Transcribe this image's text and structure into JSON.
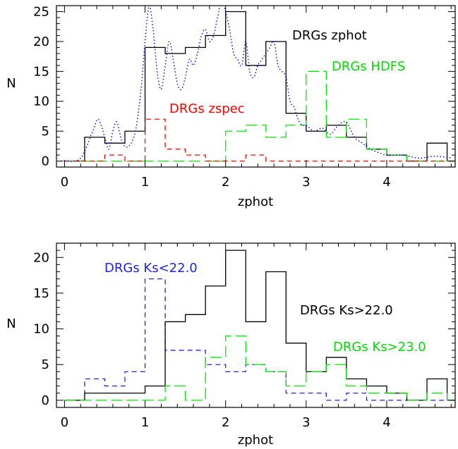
{
  "chart_data": [
    {
      "type": "histogram",
      "xlabel": "zphot",
      "ylabel": "N",
      "xlim": [
        -0.1,
        4.85
      ],
      "ylim": [
        -1,
        26
      ],
      "xticks": [
        0,
        1,
        2,
        3,
        4
      ],
      "yticks": [
        0,
        5,
        10,
        15,
        20,
        25
      ],
      "bin_edges": [
        0,
        0.25,
        0.5,
        0.75,
        1,
        1.25,
        1.5,
        1.75,
        2,
        2.25,
        2.5,
        2.75,
        3,
        3.25,
        3.5,
        3.75,
        4,
        4.25,
        4.5,
        4.75
      ],
      "series": [
        {
          "name": "DRGs zphot",
          "color": "#000000",
          "style": "solid",
          "values": [
            0,
            4,
            3,
            5,
            19,
            18,
            19,
            21,
            25,
            16,
            20,
            8,
            5,
            6,
            4,
            2,
            1,
            0,
            3
          ]
        },
        {
          "name": "DRGs HDFS",
          "color": "#00ee00",
          "style": "longdash",
          "values": [
            0,
            0,
            0,
            0,
            0,
            0,
            0,
            0,
            5,
            6,
            4,
            6,
            15,
            4,
            7,
            2,
            1,
            0,
            0
          ]
        },
        {
          "name": "DRGs zspec",
          "color": "#ff0000",
          "style": "dash",
          "values": [
            0,
            0,
            1,
            0,
            7,
            2,
            1,
            0,
            0,
            1,
            0,
            0,
            0,
            0,
            0,
            0,
            0,
            0,
            0
          ]
        }
      ],
      "smooth_curve": {
        "color": "#0000dd",
        "style": "dotted",
        "x": [
          0,
          0.2,
          0.35,
          0.42,
          0.5,
          0.55,
          0.6,
          0.65,
          0.72,
          0.8,
          0.88,
          0.95,
          1.0,
          1.05,
          1.1,
          1.15,
          1.2,
          1.25,
          1.3,
          1.35,
          1.4,
          1.45,
          1.5,
          1.55,
          1.6,
          1.65,
          1.7,
          1.75,
          1.8,
          1.85,
          1.9,
          1.95,
          2.0,
          2.05,
          2.1,
          2.15,
          2.2,
          2.25,
          2.3,
          2.35,
          2.4,
          2.45,
          2.5,
          2.55,
          2.6,
          2.65,
          2.7,
          2.75,
          2.8,
          2.85,
          2.9,
          2.95,
          3.0,
          3.1,
          3.2,
          3.3,
          3.4,
          3.5,
          3.6,
          3.7,
          3.8,
          4.0,
          4.2,
          4.4,
          4.6,
          4.8
        ],
        "y": [
          0,
          0.5,
          5,
          7,
          4,
          2,
          5,
          6.5,
          3,
          2.5,
          5,
          12,
          20,
          26,
          22,
          15,
          12,
          16,
          20,
          17,
          13,
          12,
          14,
          17,
          16,
          18,
          21,
          22,
          20,
          21,
          24,
          27,
          25,
          22,
          18,
          17,
          16,
          20,
          15,
          14,
          16,
          17,
          18,
          19,
          20,
          16,
          15,
          14,
          10,
          9,
          7,
          6,
          6,
          5,
          5.5,
          4.5,
          6,
          6.5,
          4,
          3,
          2,
          1,
          1,
          0.5,
          0.8,
          0.5
        ]
      },
      "annotations": [
        {
          "text": "DRGs zphot",
          "color": "#000000"
        },
        {
          "text": "DRGs HDFS",
          "color": "#00ee00"
        },
        {
          "text": "DRGs zspec",
          "color": "#ff0000"
        }
      ]
    },
    {
      "type": "histogram",
      "xlabel": "zphot",
      "ylabel": "N",
      "xlim": [
        -0.1,
        4.85
      ],
      "ylim": [
        -1,
        22
      ],
      "xticks": [
        0,
        1,
        2,
        3,
        4
      ],
      "yticks": [
        0,
        5,
        10,
        15,
        20
      ],
      "bin_edges": [
        0,
        0.25,
        0.5,
        0.75,
        1,
        1.25,
        1.5,
        1.75,
        2,
        2.25,
        2.5,
        2.75,
        3,
        3.25,
        3.5,
        3.75,
        4,
        4.25,
        4.5,
        4.75
      ],
      "series": [
        {
          "name": "DRGs Ks<22.0",
          "color": "#2222ee",
          "style": "dash",
          "values": [
            0,
            3,
            2,
            4,
            17,
            7,
            7,
            5,
            4,
            5,
            4,
            1,
            1,
            0,
            1,
            0,
            0,
            0,
            0
          ]
        },
        {
          "name": "DRGs Ks>22.0",
          "color": "#000000",
          "style": "solid",
          "values": [
            0,
            1,
            1,
            1,
            2,
            11,
            12,
            16,
            21,
            11,
            18,
            8,
            4,
            6,
            3,
            2,
            1,
            0,
            3
          ]
        },
        {
          "name": "DRGs Ks>23.0",
          "color": "#00ee00",
          "style": "longdash",
          "values": [
            0,
            0,
            0,
            0,
            0,
            2,
            0,
            6,
            9,
            5,
            4,
            2,
            4,
            5,
            2,
            1,
            1,
            0,
            1
          ]
        }
      ],
      "annotations": [
        {
          "text": "DRGs Ks<22.0",
          "color": "#2222ee"
        },
        {
          "text": "DRGs Ks>22.0",
          "color": "#000000"
        },
        {
          "text": "DRGs Ks>23.0",
          "color": "#00ee00"
        }
      ]
    }
  ]
}
